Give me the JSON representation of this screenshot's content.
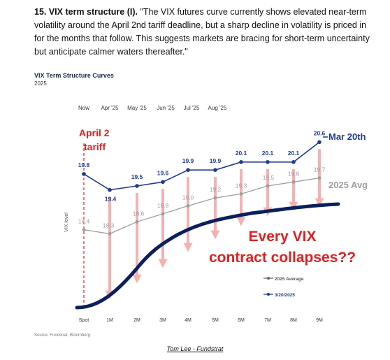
{
  "post": {
    "number_title": "15. VIX term structure (I).",
    "quote": " \"The VIX futures curve currently shows elevated near-term volatility around the April 2nd tariff deadline, but a sharp decline in volatility is priced in for the months that follow. This suggests markets are bracing for short-term uncertainty but anticipate calmer waters thereafter.\"",
    "credit": "Tom Lee - Fundstrat"
  },
  "colors": {
    "mar20": "#1f3a8f",
    "avg2025": "#9e9e9e",
    "spot_curve": "#0b1f5c",
    "arrow": "#f4a9a9",
    "red_text": "#e02020",
    "dashed": "#e02020"
  },
  "chart_data": {
    "type": "line",
    "title": "VIX Term Structure Curves",
    "subtitle": "2025",
    "ylabel": "VIX level",
    "xlabel": "",
    "categories": [
      "Spot",
      "1M",
      "2M",
      "3M",
      "4M",
      "5M",
      "6M",
      "7M",
      "8M",
      "9M"
    ],
    "top_months": [
      "Now",
      "Apr '25",
      "May '25",
      "Jun '25",
      "Jul '25",
      "Aug '25"
    ],
    "ylim": [
      15,
      22
    ],
    "series": [
      {
        "name": "3/20/2025",
        "label": "Mar 20th",
        "values": [
          19.8,
          19.4,
          19.5,
          19.6,
          19.9,
          19.9,
          20.1,
          20.1,
          20.1,
          20.6
        ]
      },
      {
        "name": "2025 Average",
        "label": "2025 Avg",
        "values": [
          18.4,
          18.3,
          18.6,
          18.8,
          19.0,
          19.2,
          19.3,
          19.5,
          19.6,
          19.7
        ]
      }
    ],
    "annotations": {
      "april2": [
        "April 2",
        "tariff"
      ],
      "headline": [
        "Every VIX",
        "contract collapses??"
      ]
    },
    "legend": [
      "2025 Average",
      "3/20/2025"
    ],
    "legend_position": "bottom-right",
    "source": "Source: Fundstrat, Bloomberg"
  }
}
